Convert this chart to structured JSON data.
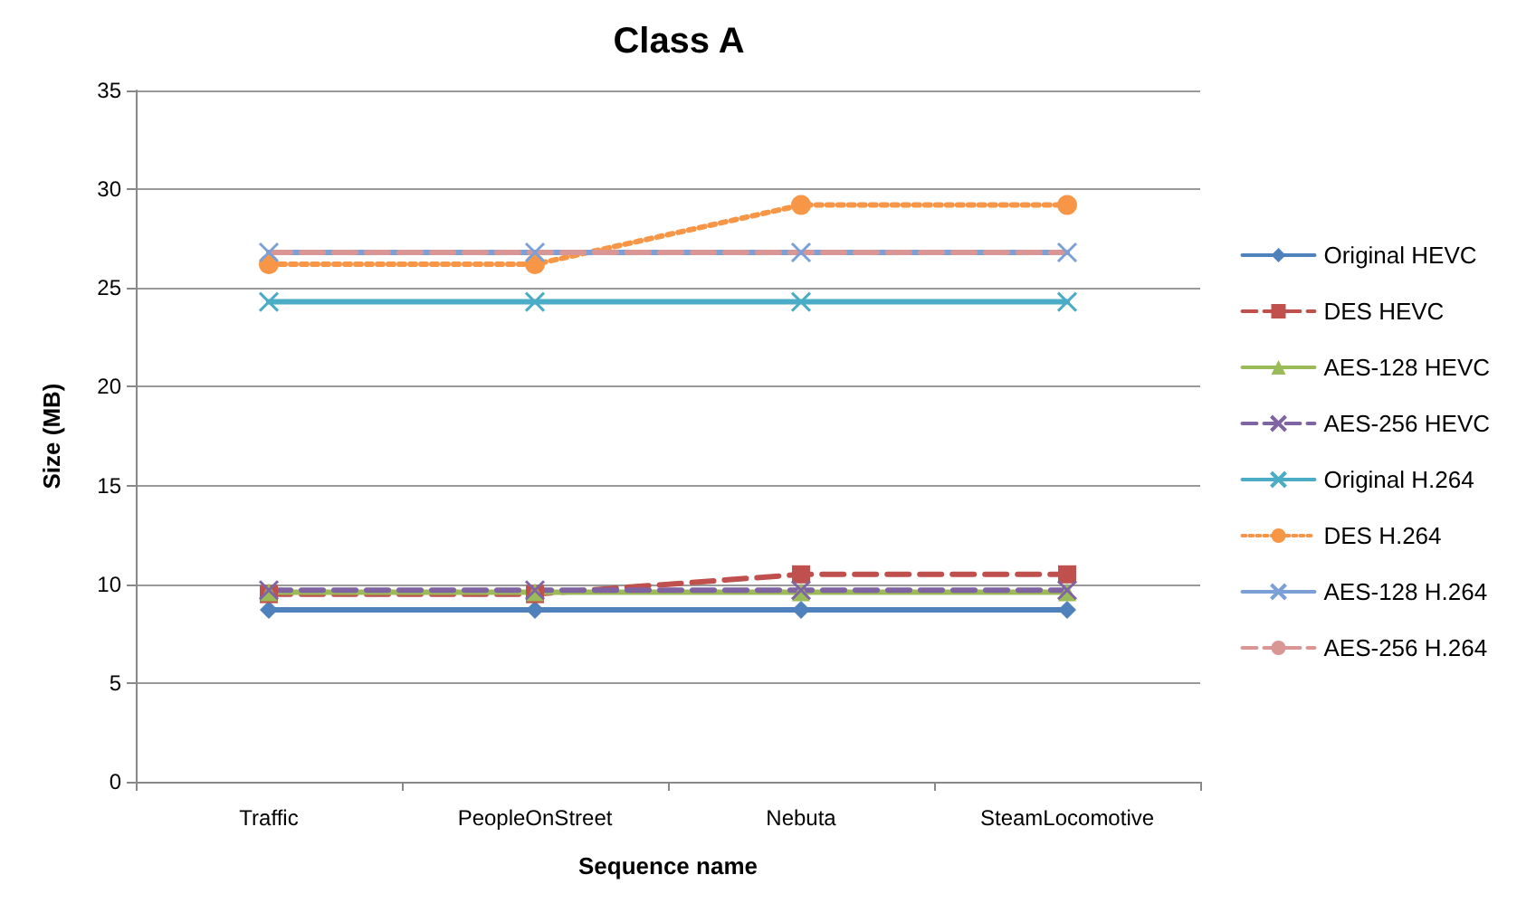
{
  "chart_data": {
    "type": "line",
    "title": "Class A",
    "xlabel": "Sequence name",
    "ylabel": "Size (MB)",
    "categories": [
      "Traffic",
      "PeopleOnStreet",
      "Nebuta",
      "SteamLocomotive"
    ],
    "ylim": [
      0,
      35
    ],
    "yticks": [
      0,
      5,
      10,
      15,
      20,
      25,
      30,
      35
    ],
    "grid": "y",
    "legend": "right",
    "series": [
      {
        "name": "Original HEVC",
        "color": "#4f81bd",
        "marker": "diamond",
        "line_style": "solid",
        "values": [
          8.7,
          8.7,
          8.7,
          8.7
        ]
      },
      {
        "name": "DES HEVC",
        "color": "#c0504d",
        "marker": "square",
        "line_style": "dashed",
        "values": [
          9.5,
          9.5,
          10.5,
          10.5
        ]
      },
      {
        "name": "AES-128 HEVC",
        "color": "#9bbb59",
        "marker": "triangle",
        "line_style": "solid",
        "values": [
          9.6,
          9.6,
          9.6,
          9.6
        ]
      },
      {
        "name": "AES-256 HEVC",
        "color": "#8064a2",
        "marker": "cross",
        "line_style": "dashed",
        "values": [
          9.7,
          9.7,
          9.7,
          9.7
        ]
      },
      {
        "name": "Original H.264",
        "color": "#4bacc6",
        "marker": "cross",
        "line_style": "solid",
        "values": [
          24.3,
          24.3,
          24.3,
          24.3
        ]
      },
      {
        "name": "DES H.264",
        "color": "#f79646",
        "marker": "circle",
        "line_style": "dotted",
        "values": [
          26.2,
          26.2,
          29.2,
          29.2
        ]
      },
      {
        "name": "AES-128 H.264",
        "color": "#7ba0d8",
        "marker": "cross",
        "line_style": "solid",
        "values": [
          26.8,
          26.8,
          26.8,
          26.8
        ]
      },
      {
        "name": "AES-256 H.264",
        "color": "#d99694",
        "marker": "none",
        "line_style": "dashed",
        "values": [
          26.8,
          26.8,
          26.8,
          26.8
        ]
      }
    ]
  }
}
